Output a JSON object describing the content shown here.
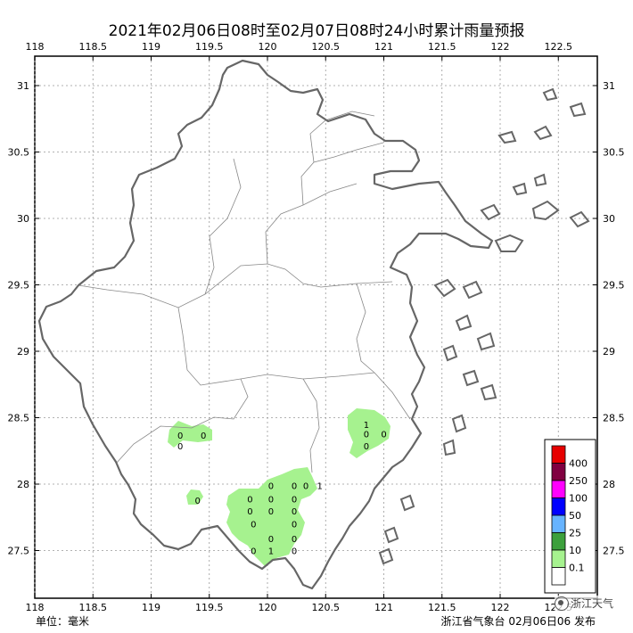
{
  "title": "2021年02月06日08时至02月07日08时24小时累计雨量预报",
  "unit_label": "单位：毫米",
  "publisher": "浙江省气象台 02月06日06 发布",
  "watermark": "浙江天气",
  "axes": {
    "lon_ticks": [
      "118",
      "118.5",
      "119",
      "119.5",
      "120",
      "120.5",
      "121",
      "121.5",
      "122",
      "122.5"
    ],
    "lat_ticks": [
      "31",
      "30.5",
      "30",
      "29.5",
      "29",
      "28.5",
      "28",
      "27.5"
    ],
    "lon_range": [
      118,
      122.85
    ],
    "lat_range": [
      27.15,
      31.25
    ],
    "grid": "dotted"
  },
  "legend": {
    "placement": "bottom-right",
    "levels": [
      "400",
      "250",
      "100",
      "50",
      "25",
      "10",
      "0.1"
    ],
    "colors": [
      "#e60000",
      "#800040",
      "#ff00ff",
      "#0000ff",
      "#66b3ff",
      "#3ca03c",
      "#a6f28f",
      "#ffffff"
    ]
  },
  "rain_areas_color": "#a6f28f",
  "rain_labels": [
    {
      "lon": 119.25,
      "lat": 28.37,
      "value": "0"
    },
    {
      "lon": 119.45,
      "lat": 28.37,
      "value": "0"
    },
    {
      "lon": 119.25,
      "lat": 28.29,
      "value": "0"
    },
    {
      "lon": 119.4,
      "lat": 27.88,
      "value": "0"
    },
    {
      "lon": 120.85,
      "lat": 28.45,
      "value": "1"
    },
    {
      "lon": 120.85,
      "lat": 28.38,
      "value": "0"
    },
    {
      "lon": 121.0,
      "lat": 28.38,
      "value": "0"
    },
    {
      "lon": 120.85,
      "lat": 28.29,
      "value": "0"
    },
    {
      "lon": 120.03,
      "lat": 27.99,
      "value": "0"
    },
    {
      "lon": 120.23,
      "lat": 27.99,
      "value": "0"
    },
    {
      "lon": 120.33,
      "lat": 27.99,
      "value": "0"
    },
    {
      "lon": 120.45,
      "lat": 27.99,
      "value": "1"
    },
    {
      "lon": 119.85,
      "lat": 27.89,
      "value": "0"
    },
    {
      "lon": 120.03,
      "lat": 27.89,
      "value": "0"
    },
    {
      "lon": 120.23,
      "lat": 27.89,
      "value": "0"
    },
    {
      "lon": 119.85,
      "lat": 27.8,
      "value": "0"
    },
    {
      "lon": 120.03,
      "lat": 27.8,
      "value": "0"
    },
    {
      "lon": 120.23,
      "lat": 27.8,
      "value": "0"
    },
    {
      "lon": 119.88,
      "lat": 27.7,
      "value": "0"
    },
    {
      "lon": 120.23,
      "lat": 27.7,
      "value": "0"
    },
    {
      "lon": 120.03,
      "lat": 27.59,
      "value": "0"
    },
    {
      "lon": 120.23,
      "lat": 27.59,
      "value": "0"
    },
    {
      "lon": 119.88,
      "lat": 27.5,
      "value": "0"
    },
    {
      "lon": 120.03,
      "lat": 27.5,
      "value": "1"
    },
    {
      "lon": 120.23,
      "lat": 27.5,
      "value": "0"
    }
  ]
}
